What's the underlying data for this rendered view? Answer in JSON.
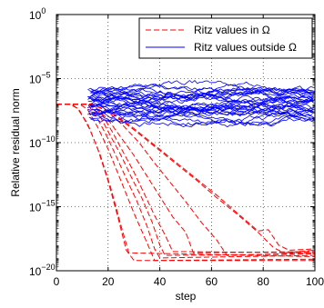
{
  "chart_data": {
    "type": "line",
    "xlabel": "step",
    "ylabel": "Relative residual norm",
    "x_range": [
      0,
      100
    ],
    "y_range": [
      1e-20,
      1
    ],
    "y_scale": "log",
    "grid": "dotted",
    "x_ticks": [
      {
        "value": 0,
        "label": "0"
      },
      {
        "value": 20,
        "label": "20"
      },
      {
        "value": 40,
        "label": "40"
      },
      {
        "value": 60,
        "label": "60"
      },
      {
        "value": 80,
        "label": "80"
      },
      {
        "value": 100,
        "label": "100"
      }
    ],
    "y_ticks": [
      {
        "exp": 0,
        "base": "10",
        "sup": "0"
      },
      {
        "exp": -5,
        "base": "10",
        "sup": "−5"
      },
      {
        "exp": -10,
        "base": "10",
        "sup": "−10"
      },
      {
        "exp": -15,
        "base": "10",
        "sup": "−15"
      },
      {
        "exp": -20,
        "base": "10",
        "sup": "−20"
      }
    ],
    "legend_position": "top-right",
    "series": [
      {
        "name": "Ritz values in Ω",
        "color": "#ff0000",
        "dash": "dashed",
        "curves": [
          [
            [
              0,
              -7
            ],
            [
              5,
              -7
            ],
            [
              8,
              -7.3
            ],
            [
              12,
              -8.5
            ],
            [
              16,
              -10.5
            ],
            [
              20,
              -13
            ],
            [
              24,
              -16
            ],
            [
              27,
              -18.4
            ],
            [
              30,
              -19.2
            ],
            [
              100,
              -19.2
            ]
          ],
          [
            [
              0,
              -7
            ],
            [
              6,
              -7
            ],
            [
              9,
              -7.5
            ],
            [
              13,
              -9
            ],
            [
              17,
              -11
            ],
            [
              21,
              -13.5
            ],
            [
              25,
              -16.5
            ],
            [
              28,
              -18.6
            ],
            [
              100,
              -18.9
            ]
          ],
          [
            [
              0,
              -7
            ],
            [
              9,
              -7
            ],
            [
              12,
              -7.4
            ],
            [
              16,
              -8.8
            ],
            [
              20,
              -10.5
            ],
            [
              25,
              -13
            ],
            [
              30,
              -15.5
            ],
            [
              35,
              -17.8
            ],
            [
              38,
              -19.2
            ],
            [
              100,
              -19.1
            ]
          ],
          [
            [
              0,
              -7
            ],
            [
              12,
              -7
            ],
            [
              15,
              -7.8
            ],
            [
              19,
              -9.3
            ],
            [
              23,
              -11
            ],
            [
              27,
              -12.8
            ],
            [
              31,
              -14.5
            ],
            [
              35,
              -16.5
            ],
            [
              38,
              -18.3
            ],
            [
              40,
              -19
            ],
            [
              100,
              -18.8
            ]
          ],
          [
            [
              0,
              -7
            ],
            [
              13,
              -7
            ],
            [
              17,
              -8
            ],
            [
              21,
              -9.5
            ],
            [
              25,
              -11
            ],
            [
              29,
              -12.7
            ],
            [
              33,
              -14.3
            ],
            [
              37,
              -16.2
            ],
            [
              40,
              -18
            ],
            [
              42,
              -18.8
            ],
            [
              100,
              -18.7
            ]
          ],
          [
            [
              0,
              -7
            ],
            [
              14,
              -7
            ],
            [
              18,
              -7.9
            ],
            [
              22,
              -9.3
            ],
            [
              26,
              -10.8
            ],
            [
              30,
              -12.3
            ],
            [
              34,
              -14
            ],
            [
              38,
              -15.7
            ],
            [
              42,
              -17.2
            ],
            [
              45,
              -18.5
            ],
            [
              100,
              -18.6
            ]
          ],
          [
            [
              0,
              -7
            ],
            [
              14,
              -7
            ],
            [
              20,
              -8.2
            ],
            [
              25,
              -9.6
            ],
            [
              30,
              -11
            ],
            [
              35,
              -12.6
            ],
            [
              40,
              -14.2
            ],
            [
              45,
              -15.8
            ],
            [
              50,
              -17
            ],
            [
              53,
              -18.6
            ],
            [
              100,
              -18.5
            ]
          ],
          [
            [
              0,
              -7
            ],
            [
              14,
              -7
            ],
            [
              20,
              -7.6
            ],
            [
              26,
              -8.7
            ],
            [
              32,
              -10
            ],
            [
              38,
              -11.6
            ],
            [
              44,
              -13.1
            ],
            [
              50,
              -14.6
            ],
            [
              56,
              -16.2
            ],
            [
              62,
              -17.6
            ],
            [
              66,
              -18.8
            ],
            [
              100,
              -18.6
            ]
          ],
          [
            [
              0,
              -7
            ],
            [
              14,
              -7
            ],
            [
              22,
              -7.8
            ],
            [
              30,
              -9
            ],
            [
              38,
              -10.3
            ],
            [
              46,
              -11.6
            ],
            [
              54,
              -12.9
            ],
            [
              62,
              -14.3
            ],
            [
              70,
              -15.6
            ],
            [
              78,
              -17
            ],
            [
              84,
              -18.2
            ],
            [
              88,
              -18.6
            ],
            [
              100,
              -18.4
            ]
          ],
          [
            [
              0,
              -7
            ],
            [
              14,
              -7
            ],
            [
              22,
              -7.7
            ],
            [
              30,
              -8.9
            ],
            [
              38,
              -10.2
            ],
            [
              46,
              -11.5
            ],
            [
              54,
              -12.8
            ],
            [
              62,
              -14.1
            ],
            [
              70,
              -15.5
            ],
            [
              78,
              -16.9
            ],
            [
              82,
              -16.8
            ],
            [
              86,
              -18
            ],
            [
              90,
              -18.4
            ],
            [
              100,
              -18.3
            ]
          ]
        ]
      },
      {
        "name": "Ritz values outside Ω",
        "color": "#0000ff",
        "dash": "solid",
        "start_x": 12,
        "y_band": [
          -8,
          -5.8
        ]
      }
    ]
  }
}
